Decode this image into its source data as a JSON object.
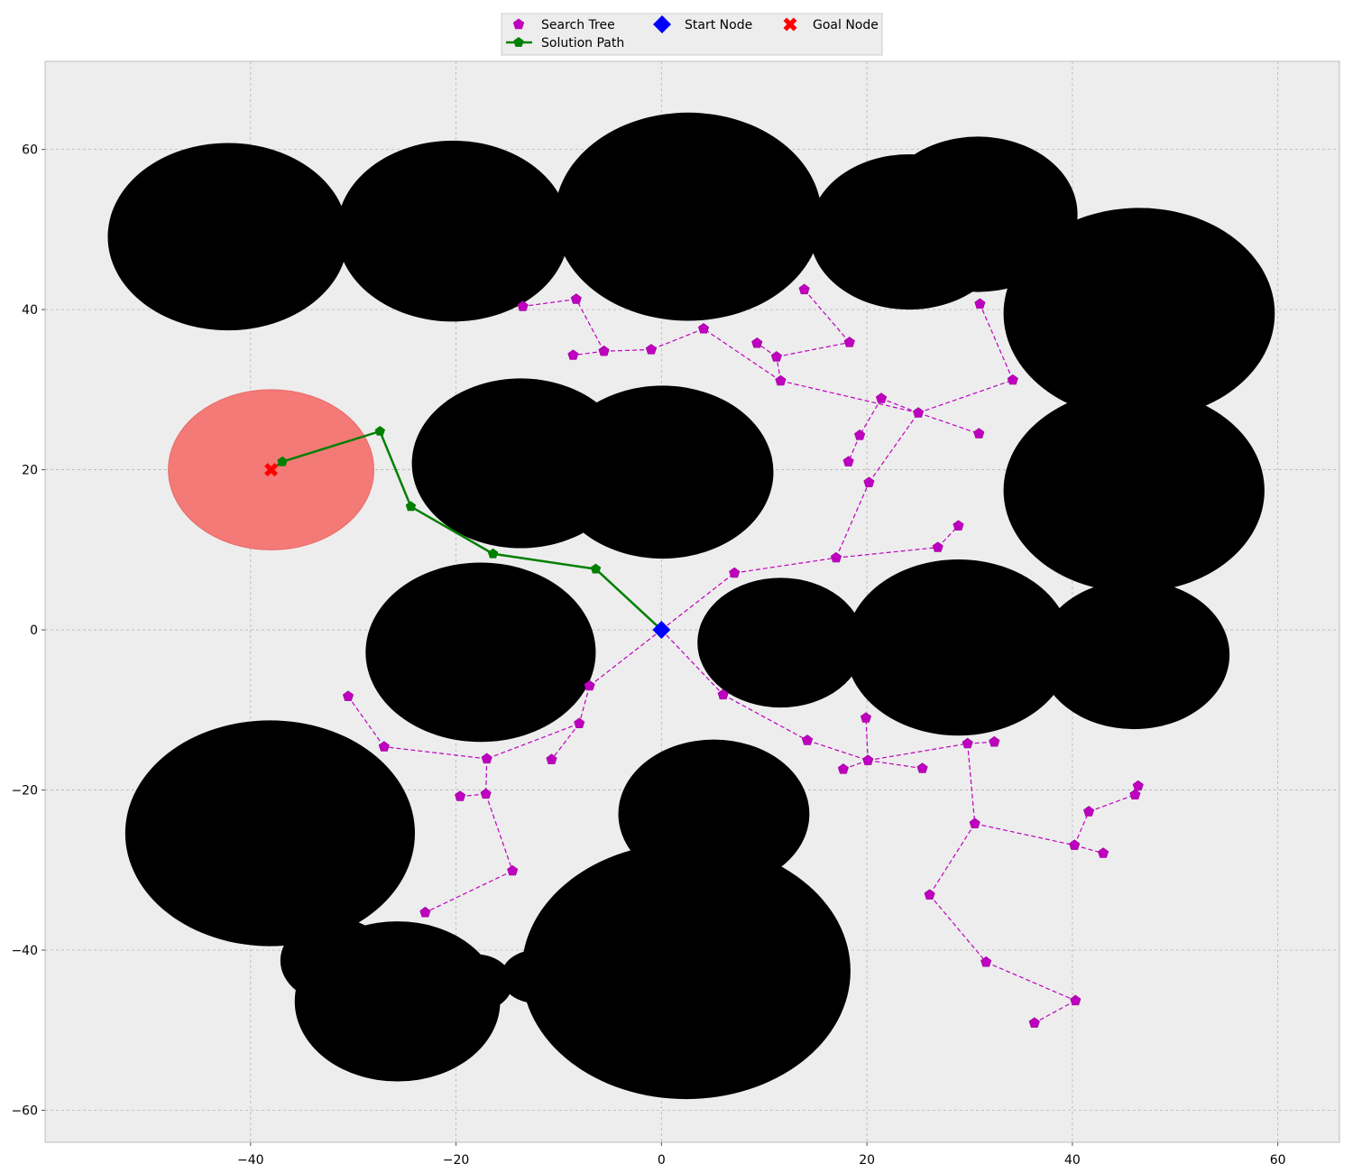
{
  "chart_data": {
    "type": "scatter",
    "xlim": [
      -60,
      66
    ],
    "ylim": [
      -64,
      71
    ],
    "xticks": [
      -40,
      -20,
      0,
      20,
      40,
      60
    ],
    "yticks": [
      -60,
      -40,
      -20,
      0,
      20,
      40,
      60
    ],
    "xtick_labels": [
      "−40",
      "−20",
      "0",
      "20",
      "40",
      "60"
    ],
    "ytick_labels": [
      "−60",
      "−40",
      "−20",
      "0",
      "20",
      "40",
      "60"
    ],
    "grid": true,
    "legend_placement": "top-center",
    "legend": [
      {
        "key": "tree",
        "label": "Search Tree"
      },
      {
        "key": "start",
        "label": "Start Node"
      },
      {
        "key": "goal",
        "label": "Goal Node"
      },
      {
        "key": "path",
        "label": "Solution Path"
      }
    ],
    "colors": {
      "axes_bg": "#ededed",
      "obstacle": "#000000",
      "tree": "#bf00bf",
      "path": "#008000",
      "start": "#0000ff",
      "goal": "#ff0000",
      "goal_region": "#f47a78"
    },
    "goal_region": {
      "cx": -38,
      "cy": 20,
      "r": 10
    },
    "obstacles": [
      {
        "cx": -42.2,
        "cy": 49.1,
        "r": 11.7
      },
      {
        "cx": -20.3,
        "cy": 49.8,
        "r": 11.3
      },
      {
        "cx": 2.6,
        "cy": 51.6,
        "r": 13.0
      },
      {
        "cx": 24.1,
        "cy": 49.7,
        "r": 9.7
      },
      {
        "cx": 30.8,
        "cy": 51.9,
        "r": 9.7
      },
      {
        "cx": 46.5,
        "cy": 39.5,
        "r": 13.2
      },
      {
        "cx": 46.0,
        "cy": 17.4,
        "r": 12.7
      },
      {
        "cx": -13.7,
        "cy": 20.8,
        "r": 10.6
      },
      {
        "cx": 0.1,
        "cy": 19.7,
        "r": 10.8
      },
      {
        "cx": -17.6,
        "cy": -2.8,
        "r": 11.2
      },
      {
        "cx": 11.6,
        "cy": -1.6,
        "r": 8.1
      },
      {
        "cx": 28.9,
        "cy": -2.2,
        "r": 11.0
      },
      {
        "cx": 46.0,
        "cy": -3.1,
        "r": 9.3
      },
      {
        "cx": -38.1,
        "cy": -25.4,
        "r": 14.1
      },
      {
        "cx": 5.1,
        "cy": -23.0,
        "r": 9.3
      },
      {
        "cx": 2.4,
        "cy": -42.6,
        "r": 16.0
      },
      {
        "cx": -31.8,
        "cy": -41.3,
        "r": 5.3
      },
      {
        "cx": -25.7,
        "cy": -46.4,
        "r": 10.0
      },
      {
        "cx": -18.1,
        "cy": -44.1,
        "r": 3.6
      },
      {
        "cx": -12.3,
        "cy": -43.3,
        "r": 3.3
      }
    ],
    "search_tree": {
      "nodes": [
        [
          0,
          0
        ],
        [
          -7,
          -7
        ],
        [
          -8,
          -11.7
        ],
        [
          -10.7,
          -16.2
        ],
        [
          -17,
          -16.1
        ],
        [
          -27,
          -14.6
        ],
        [
          -30.5,
          -8.3
        ],
        [
          -17.1,
          -20.5
        ],
        [
          -19.6,
          -20.8
        ],
        [
          -14.5,
          -30.1
        ],
        [
          -23,
          -35.3
        ],
        [
          6,
          -8.1
        ],
        [
          14.2,
          -13.8
        ],
        [
          20.1,
          -16.3
        ],
        [
          19.9,
          -11
        ],
        [
          17.7,
          -17.4
        ],
        [
          25.4,
          -17.3
        ],
        [
          29.8,
          -14.2
        ],
        [
          32.4,
          -14
        ],
        [
          30.5,
          -24.2
        ],
        [
          26.1,
          -33.1
        ],
        [
          31.6,
          -41.5
        ],
        [
          40.3,
          -46.3
        ],
        [
          36.3,
          -49.1
        ],
        [
          40.2,
          -26.9
        ],
        [
          43,
          -27.9
        ],
        [
          41.6,
          -22.7
        ],
        [
          46.1,
          -20.6
        ],
        [
          46.4,
          -19.5
        ],
        [
          7.1,
          7.1
        ],
        [
          17,
          9
        ],
        [
          26.9,
          10.3
        ],
        [
          28.9,
          13
        ],
        [
          20.2,
          18.4
        ],
        [
          25,
          27.1
        ],
        [
          21.4,
          28.9
        ],
        [
          19.3,
          24.3
        ],
        [
          18.2,
          21
        ],
        [
          30.9,
          24.5
        ],
        [
          34.2,
          31.2
        ],
        [
          31,
          40.7
        ],
        [
          11.6,
          31.1
        ],
        [
          11.2,
          34.1
        ],
        [
          9.3,
          35.8
        ],
        [
          18.3,
          35.9
        ],
        [
          13.9,
          42.5
        ],
        [
          4.1,
          37.6
        ],
        [
          -1,
          35
        ],
        [
          -5.6,
          34.8
        ],
        [
          -8.6,
          34.3
        ],
        [
          -8.3,
          41.3
        ],
        [
          -13.5,
          40.4
        ]
      ],
      "edges": [
        [
          0,
          1
        ],
        [
          1,
          2
        ],
        [
          2,
          3
        ],
        [
          2,
          4
        ],
        [
          4,
          5
        ],
        [
          5,
          6
        ],
        [
          4,
          7
        ],
        [
          7,
          8
        ],
        [
          7,
          9
        ],
        [
          9,
          10
        ],
        [
          0,
          11
        ],
        [
          11,
          12
        ],
        [
          12,
          13
        ],
        [
          13,
          14
        ],
        [
          13,
          15
        ],
        [
          13,
          16
        ],
        [
          13,
          17
        ],
        [
          17,
          18
        ],
        [
          17,
          19
        ],
        [
          19,
          20
        ],
        [
          20,
          21
        ],
        [
          21,
          22
        ],
        [
          22,
          23
        ],
        [
          19,
          24
        ],
        [
          24,
          25
        ],
        [
          24,
          26
        ],
        [
          26,
          27
        ],
        [
          27,
          28
        ],
        [
          0,
          29
        ],
        [
          29,
          30
        ],
        [
          30,
          31
        ],
        [
          31,
          32
        ],
        [
          30,
          33
        ],
        [
          33,
          34
        ],
        [
          34,
          35
        ],
        [
          35,
          36
        ],
        [
          36,
          37
        ],
        [
          34,
          38
        ],
        [
          34,
          39
        ],
        [
          39,
          40
        ],
        [
          34,
          41
        ],
        [
          41,
          42
        ],
        [
          42,
          43
        ],
        [
          42,
          44
        ],
        [
          44,
          45
        ],
        [
          41,
          46
        ],
        [
          46,
          47
        ],
        [
          47,
          48
        ],
        [
          48,
          49
        ],
        [
          48,
          50
        ],
        [
          50,
          51
        ]
      ]
    },
    "solution_path": [
      [
        0,
        0
      ],
      [
        -6.4,
        7.6
      ],
      [
        -16.4,
        9.5
      ],
      [
        -24.4,
        15.4
      ],
      [
        -27.4,
        24.8
      ],
      [
        -36.9,
        21
      ],
      [
        -38,
        20
      ]
    ],
    "start_node": [
      0,
      0
    ],
    "goal_node": [
      -38,
      20
    ]
  }
}
